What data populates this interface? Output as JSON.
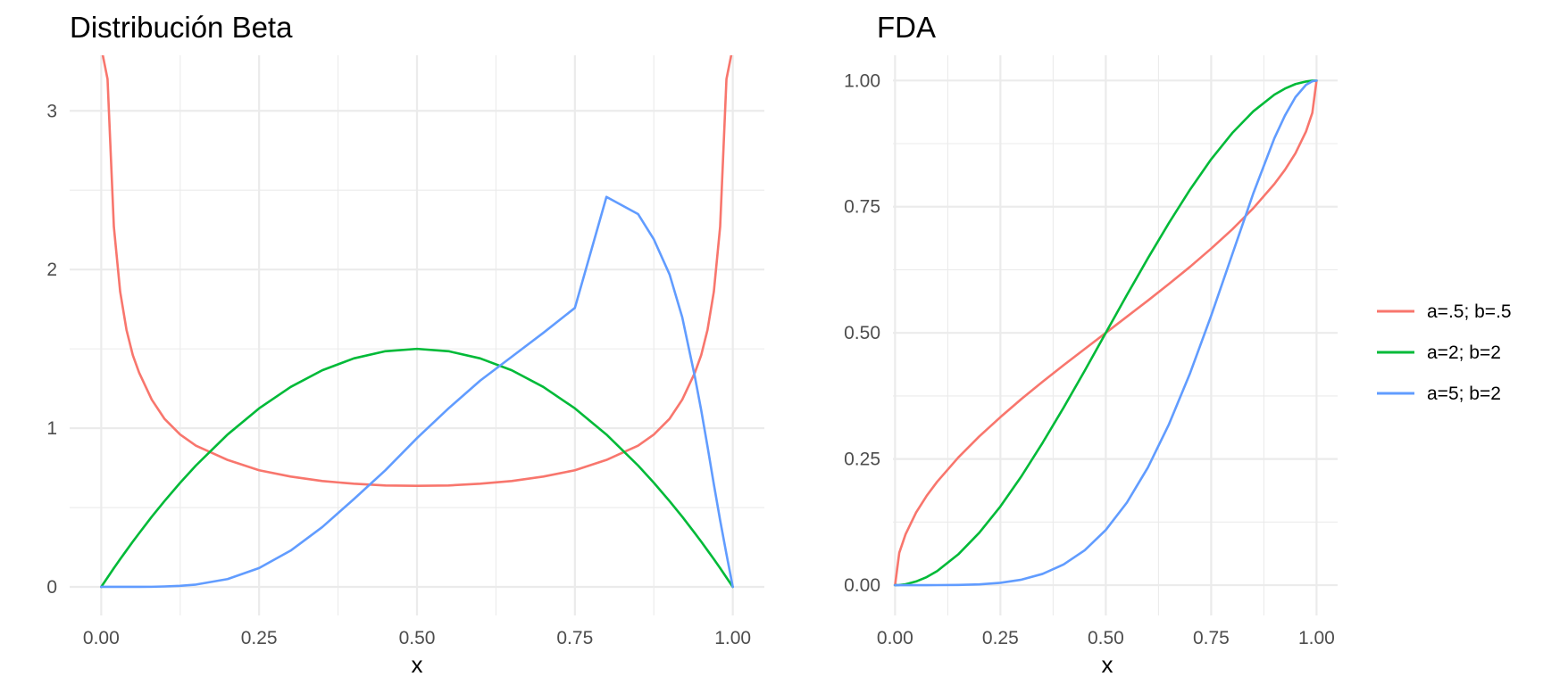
{
  "chart_data": [
    {
      "type": "line",
      "title": "Distribución Beta",
      "xlabel": "x",
      "ylabel": "",
      "xlim": [
        -0.05,
        1.05
      ],
      "ylim": [
        -0.18,
        3.35
      ],
      "x_ticks": [
        0,
        0.25,
        0.5,
        0.75,
        1
      ],
      "x_tick_labels": [
        "0.00",
        "0.25",
        "0.50",
        "0.75",
        "1.00"
      ],
      "y_ticks": [
        0,
        1,
        2,
        3
      ],
      "y_tick_labels": [
        "0",
        "1",
        "2",
        "3"
      ],
      "grid": true,
      "x": [
        0,
        0.01,
        0.02,
        0.03,
        0.04,
        0.05,
        0.06,
        0.08,
        0.1,
        0.125,
        0.15,
        0.2,
        0.25,
        0.3,
        0.35,
        0.4,
        0.45,
        0.5,
        0.55,
        0.6,
        0.65,
        0.7,
        0.75,
        0.8,
        0.85,
        0.875,
        0.9,
        0.92,
        0.94,
        0.95,
        0.96,
        0.97,
        0.98,
        0.99,
        1
      ],
      "series": [
        {
          "name": "a=.5; b=.5",
          "color": "#F8766D",
          "values": [
            3.4,
            3.2,
            2.27,
            1.86,
            1.62,
            1.46,
            1.35,
            1.18,
            1.06,
            0.96,
            0.89,
            0.8,
            0.735,
            0.695,
            0.667,
            0.65,
            0.639,
            0.637,
            0.639,
            0.65,
            0.667,
            0.695,
            0.735,
            0.8,
            0.89,
            0.96,
            1.06,
            1.18,
            1.35,
            1.46,
            1.62,
            1.86,
            2.27,
            3.2,
            3.4
          ]
        },
        {
          "name": "a=2; b=2",
          "color": "#00BA38",
          "values": [
            0,
            0.059,
            0.118,
            0.175,
            0.23,
            0.285,
            0.338,
            0.442,
            0.54,
            0.656,
            0.765,
            0.96,
            1.125,
            1.26,
            1.365,
            1.44,
            1.485,
            1.5,
            1.485,
            1.44,
            1.365,
            1.26,
            1.125,
            0.96,
            0.765,
            0.656,
            0.54,
            0.442,
            0.338,
            0.285,
            0.23,
            0.175,
            0.118,
            0.059,
            0
          ]
        },
        {
          "name": "a=5; b=2",
          "color": "#619CFF",
          "values": [
            0,
            0,
            0,
            0,
            0,
            0,
            0.0002,
            0.0006,
            0.0027,
            0.0067,
            0.0145,
            0.0492,
            0.1187,
            0.2288,
            0.3767,
            0.553,
            0.7353,
            0.9375,
            1.1252,
            1.2998,
            1.45,
            1.6009,
            1.7581,
            2.4576,
            2.3496,
            2.19,
            1.9683,
            1.6987,
            1.3239,
            1.1136,
            0.8847,
            0.647,
            0.4194,
            0.2067,
            0
          ]
        }
      ]
    },
    {
      "type": "line",
      "title": "FDA",
      "xlabel": "x",
      "ylabel": "",
      "xlim": [
        -0.005,
        1.05
      ],
      "ylim": [
        -0.06,
        1.05
      ],
      "x_ticks": [
        0,
        0.25,
        0.5,
        0.75,
        1
      ],
      "x_tick_labels": [
        "0.00",
        "0.25",
        "0.50",
        "0.75",
        "1.00"
      ],
      "y_ticks": [
        0,
        0.25,
        0.5,
        0.75,
        1
      ],
      "y_tick_labels": [
        "0.00",
        "0.25",
        "0.50",
        "0.75",
        "1.00"
      ],
      "grid": true,
      "x": [
        0,
        0.01,
        0.025,
        0.05,
        0.075,
        0.1,
        0.15,
        0.2,
        0.25,
        0.3,
        0.35,
        0.4,
        0.45,
        0.5,
        0.55,
        0.6,
        0.65,
        0.7,
        0.75,
        0.8,
        0.85,
        0.9,
        0.925,
        0.95,
        0.975,
        0.99,
        1
      ],
      "series": [
        {
          "name": "a=.5; b=.5",
          "color": "#F8766D",
          "values": [
            0,
            0.064,
            0.101,
            0.144,
            0.177,
            0.205,
            0.253,
            0.295,
            0.333,
            0.369,
            0.403,
            0.436,
            0.468,
            0.5,
            0.532,
            0.564,
            0.597,
            0.631,
            0.667,
            0.705,
            0.747,
            0.795,
            0.823,
            0.856,
            0.899,
            0.936,
            1
          ]
        },
        {
          "name": "a=2; b=2",
          "color": "#00BA38",
          "values": [
            0,
            0.0003,
            0.0018,
            0.0073,
            0.0159,
            0.028,
            0.061,
            0.104,
            0.156,
            0.216,
            0.282,
            0.352,
            0.425,
            0.5,
            0.575,
            0.648,
            0.718,
            0.784,
            0.844,
            0.896,
            0.939,
            0.972,
            0.984,
            0.993,
            0.998,
            0.9997,
            1
          ]
        },
        {
          "name": "a=5; b=2",
          "color": "#619CFF",
          "values": [
            0,
            0,
            0,
            0,
            0,
            0.0001,
            0.0005,
            0.0016,
            0.0046,
            0.0109,
            0.0223,
            0.041,
            0.0692,
            0.1094,
            0.1636,
            0.2333,
            0.3191,
            0.4202,
            0.534,
            0.6554,
            0.7765,
            0.8857,
            0.9306,
            0.9672,
            0.9915,
            0.9985,
            1
          ]
        }
      ]
    }
  ],
  "legend": {
    "placement": "right",
    "items": [
      {
        "label": "a=.5; b=.5",
        "color": "#F8766D"
      },
      {
        "label": "a=2; b=2",
        "color": "#00BA38"
      },
      {
        "label": "a=5; b=2",
        "color": "#619CFF"
      }
    ]
  }
}
